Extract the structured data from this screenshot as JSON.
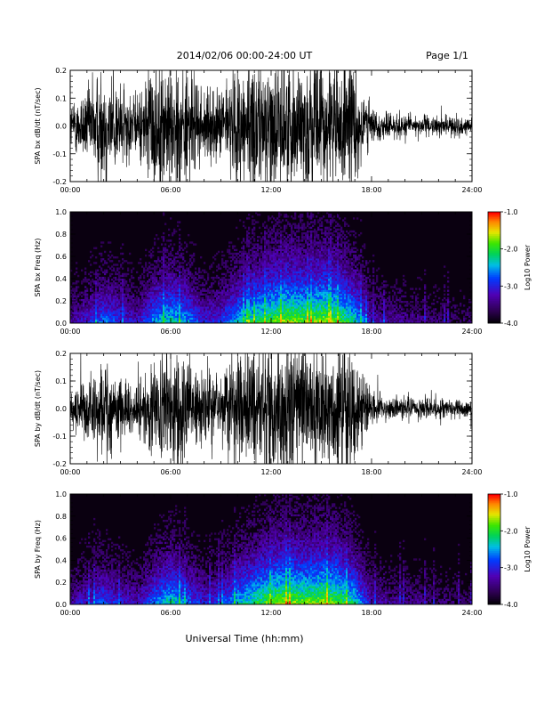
{
  "header": {
    "title": "2014/02/06  00:00-24:00 UT",
    "page": "Page 1/1"
  },
  "footer": {
    "xlabel": "Universal Time (hh:mm)"
  },
  "chart_data": [
    {
      "type": "line",
      "id": "bx-waveform",
      "ylabel": "SPA bx dB/dt (nT/sec)",
      "ylim": [
        -0.2,
        0.2
      ],
      "yticks": [
        "0.2",
        "0.1",
        "0.0",
        "-0.1",
        "-0.2"
      ],
      "xlim": [
        "00:00",
        "24:00"
      ],
      "xticks": [
        "00:00",
        "06:00",
        "12:00",
        "18:00",
        "24:00"
      ],
      "grid": false,
      "amplitude_envelope": {
        "x_hours": [
          0,
          1,
          2,
          3,
          4,
          5,
          6,
          7,
          8,
          9,
          10,
          11,
          12,
          13,
          14,
          15,
          16,
          17,
          18,
          19,
          20,
          21,
          22,
          23,
          24
        ],
        "peak_amplitude": [
          0.07,
          0.12,
          0.2,
          0.13,
          0.09,
          0.2,
          0.2,
          0.19,
          0.1,
          0.11,
          0.2,
          0.2,
          0.2,
          0.2,
          0.2,
          0.2,
          0.2,
          0.2,
          0.05,
          0.04,
          0.04,
          0.03,
          0.03,
          0.03,
          0.025
        ]
      }
    },
    {
      "type": "heatmap",
      "id": "bx-spectrogram",
      "ylabel": "SPA bx Freq (Hz)",
      "ylim": [
        0.0,
        1.0
      ],
      "yticks": [
        "1.0",
        "0.8",
        "0.6",
        "0.4",
        "0.2",
        "0.0"
      ],
      "xlim": [
        "00:00",
        "24:00"
      ],
      "xticks": [
        "00:00",
        "06:00",
        "12:00",
        "18:00",
        "24:00"
      ],
      "colorbar": {
        "label": "Log10 Power",
        "range": [
          -4.0,
          -1.0
        ],
        "ticks": [
          "-1.0",
          "-2.0",
          "-3.0",
          "-4.0"
        ]
      },
      "activity_by_hour": [
        0.3,
        0.4,
        0.55,
        0.45,
        0.35,
        0.6,
        0.7,
        0.6,
        0.4,
        0.45,
        0.65,
        0.75,
        0.85,
        0.9,
        0.85,
        0.9,
        0.85,
        0.7,
        0.35,
        0.3,
        0.28,
        0.25,
        0.22,
        0.2,
        0.2
      ]
    },
    {
      "type": "line",
      "id": "by-waveform",
      "ylabel": "SPA by dB/dt (nT/sec)",
      "ylim": [
        -0.2,
        0.2
      ],
      "yticks": [
        "0.2",
        "0.1",
        "0.0",
        "-0.1",
        "-0.2"
      ],
      "xlim": [
        "00:00",
        "24:00"
      ],
      "xticks": [
        "00:00",
        "06:00",
        "12:00",
        "18:00",
        "24:00"
      ],
      "grid": false,
      "amplitude_envelope": {
        "x_hours": [
          0,
          1,
          2,
          3,
          4,
          5,
          6,
          7,
          8,
          9,
          10,
          11,
          12,
          13,
          14,
          15,
          16,
          17,
          18,
          19,
          20,
          21,
          22,
          23,
          24
        ],
        "peak_amplitude": [
          0.06,
          0.1,
          0.16,
          0.1,
          0.08,
          0.15,
          0.2,
          0.17,
          0.1,
          0.12,
          0.2,
          0.2,
          0.2,
          0.2,
          0.2,
          0.2,
          0.2,
          0.18,
          0.05,
          0.04,
          0.04,
          0.03,
          0.03,
          0.03,
          0.02
        ]
      }
    },
    {
      "type": "heatmap",
      "id": "by-spectrogram",
      "ylabel": "SPA by Freq (Hz)",
      "ylim": [
        0.0,
        1.0
      ],
      "yticks": [
        "1.0",
        "0.8",
        "0.6",
        "0.4",
        "0.2",
        "0.0"
      ],
      "xlim": [
        "00:00",
        "24:00"
      ],
      "xticks": [
        "00:00",
        "06:00",
        "12:00",
        "18:00",
        "24:00"
      ],
      "colorbar": {
        "label": "Log10 Power",
        "range": [
          -4.0,
          -1.0
        ],
        "ticks": [
          "-1.0",
          "-2.0",
          "-3.0",
          "-4.0"
        ]
      },
      "activity_by_hour": [
        0.3,
        0.4,
        0.5,
        0.4,
        0.35,
        0.55,
        0.7,
        0.55,
        0.4,
        0.45,
        0.65,
        0.75,
        0.85,
        0.9,
        0.85,
        0.9,
        0.85,
        0.7,
        0.35,
        0.3,
        0.28,
        0.25,
        0.22,
        0.2,
        0.2
      ]
    }
  ]
}
